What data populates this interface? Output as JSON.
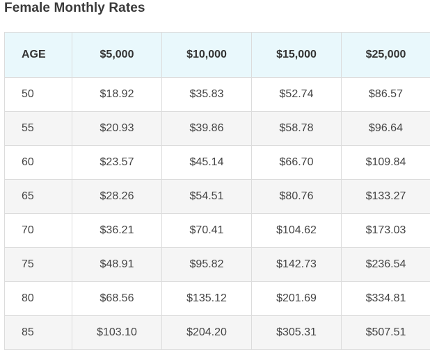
{
  "title": "Female Monthly Rates",
  "table": {
    "headers": [
      "AGE",
      "$5,000",
      "$10,000",
      "$15,000",
      "$25,000"
    ],
    "rows": [
      [
        "50",
        "$18.92",
        "$35.83",
        "$52.74",
        "$86.57"
      ],
      [
        "55",
        "$20.93",
        "$39.86",
        "$58.78",
        "$96.64"
      ],
      [
        "60",
        "$23.57",
        "$45.14",
        "$66.70",
        "$109.84"
      ],
      [
        "65",
        "$28.26",
        "$54.51",
        "$80.76",
        "$133.27"
      ],
      [
        "70",
        "$36.21",
        "$70.41",
        "$104.62",
        "$173.03"
      ],
      [
        "75",
        "$48.91",
        "$95.82",
        "$142.73",
        "$236.54"
      ],
      [
        "80",
        "$68.56",
        "$135.12",
        "$201.69",
        "$334.81"
      ],
      [
        "85",
        "$103.10",
        "$204.20",
        "$305.31",
        "$507.51"
      ]
    ]
  },
  "colors": {
    "header_background": "#e9f8fc",
    "row_alt_background": "#f5f5f5",
    "border": "#dcdcdc"
  }
}
